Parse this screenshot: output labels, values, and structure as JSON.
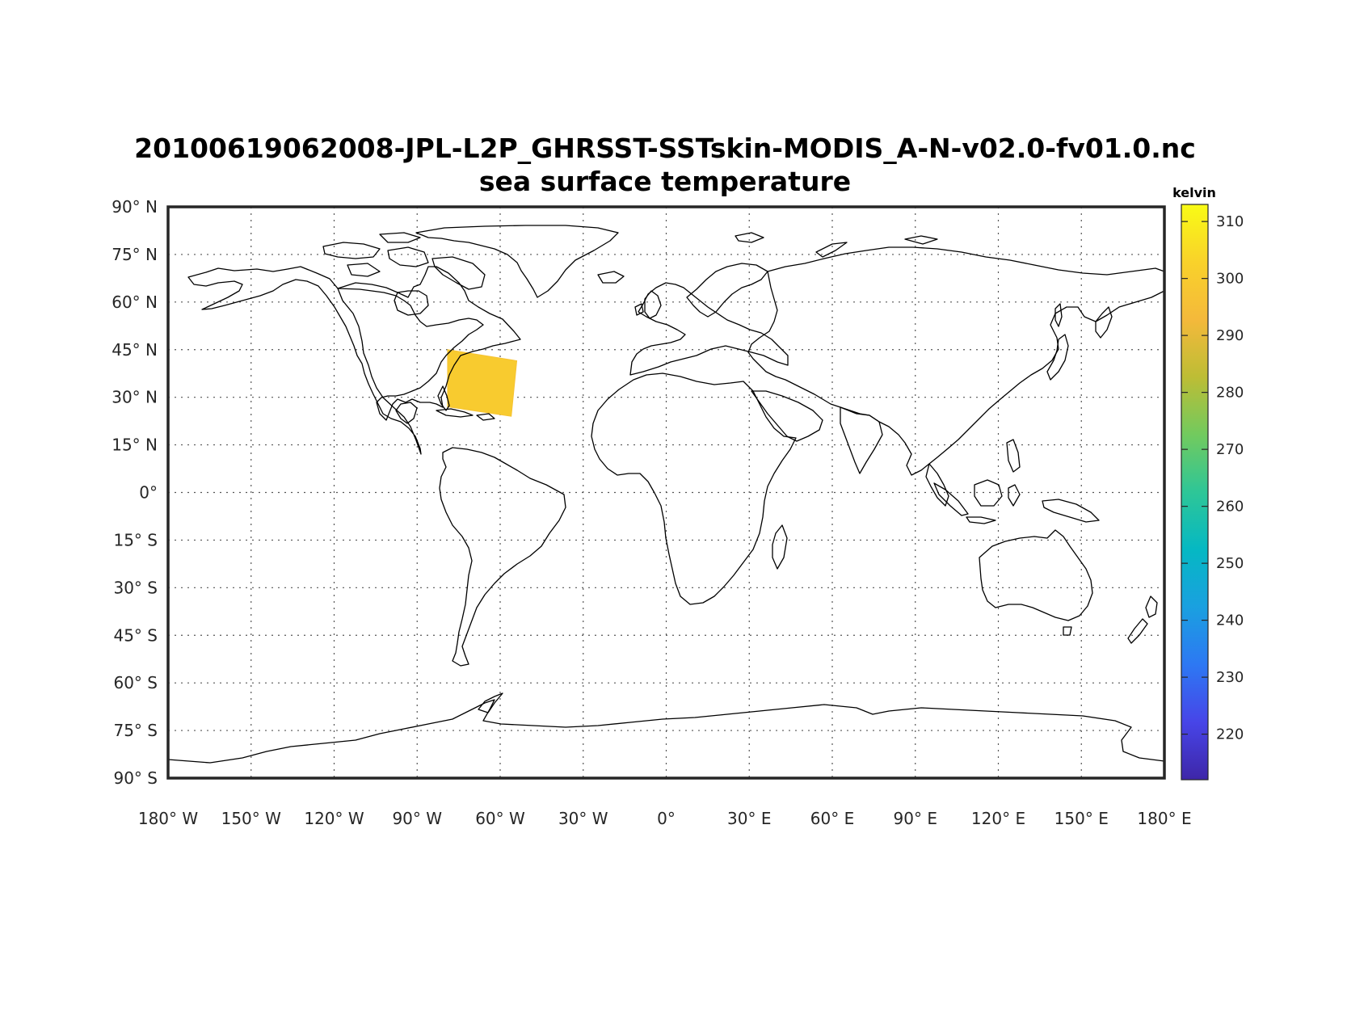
{
  "title": {
    "line1": "20100619062008-JPL-L2P_GHRSST-SSTskin-MODIS_A-N-v02.0-fv01.0.nc",
    "line2": "sea surface temperature"
  },
  "colorbar": {
    "units": "kelvin",
    "range": [
      212,
      313
    ],
    "ticks": [
      {
        "value": 220,
        "label": "220"
      },
      {
        "value": 230,
        "label": "230"
      },
      {
        "value": 240,
        "label": "240"
      },
      {
        "value": 250,
        "label": "250"
      },
      {
        "value": 260,
        "label": "260"
      },
      {
        "value": 270,
        "label": "270"
      },
      {
        "value": 280,
        "label": "280"
      },
      {
        "value": 290,
        "label": "290"
      },
      {
        "value": 300,
        "label": "300"
      },
      {
        "value": 310,
        "label": "310"
      }
    ],
    "colormap": [
      "#3e26a8",
      "#4745e8",
      "#2d78f3",
      "#1aa0e0",
      "#05b8c3",
      "#2ec697",
      "#72ca5e",
      "#bdbd35",
      "#f4b93b",
      "#f9d22a",
      "#f9fb15"
    ]
  },
  "map": {
    "projection": "equirectangular",
    "lon_range": [
      -180,
      180
    ],
    "lat_range": [
      -90,
      90
    ],
    "grid": "dotted",
    "lon_ticks": [
      {
        "value": -180,
        "label": "180° W"
      },
      {
        "value": -150,
        "label": "150° W"
      },
      {
        "value": -120,
        "label": "120° W"
      },
      {
        "value": -90,
        "label": "90° W"
      },
      {
        "value": -60,
        "label": "60° W"
      },
      {
        "value": -30,
        "label": "30° W"
      },
      {
        "value": 0,
        "label": "0°"
      },
      {
        "value": 30,
        "label": "30° E"
      },
      {
        "value": 60,
        "label": "60° E"
      },
      {
        "value": 90,
        "label": "90° E"
      },
      {
        "value": 120,
        "label": "120° E"
      },
      {
        "value": 150,
        "label": "150° E"
      },
      {
        "value": 180,
        "label": "180° E"
      }
    ],
    "lat_ticks": [
      {
        "value": 90,
        "label": "90° N"
      },
      {
        "value": 75,
        "label": "75° N"
      },
      {
        "value": 60,
        "label": "60° N"
      },
      {
        "value": 45,
        "label": "45° N"
      },
      {
        "value": 30,
        "label": "30° N"
      },
      {
        "value": 15,
        "label": "15° N"
      },
      {
        "value": 0,
        "label": "0°"
      },
      {
        "value": -15,
        "label": "15° S"
      },
      {
        "value": -30,
        "label": "30° S"
      },
      {
        "value": -45,
        "label": "45° S"
      },
      {
        "value": -60,
        "label": "60° S"
      },
      {
        "value": -75,
        "label": "75° S"
      },
      {
        "value": -90,
        "label": "90° S"
      }
    ],
    "swath": {
      "corners_lonlat": [
        [
          -79,
          45
        ],
        [
          -54,
          41.5
        ],
        [
          -56,
          24
        ],
        [
          -79,
          27
        ]
      ],
      "typical_value_kelvin": 300
    }
  }
}
